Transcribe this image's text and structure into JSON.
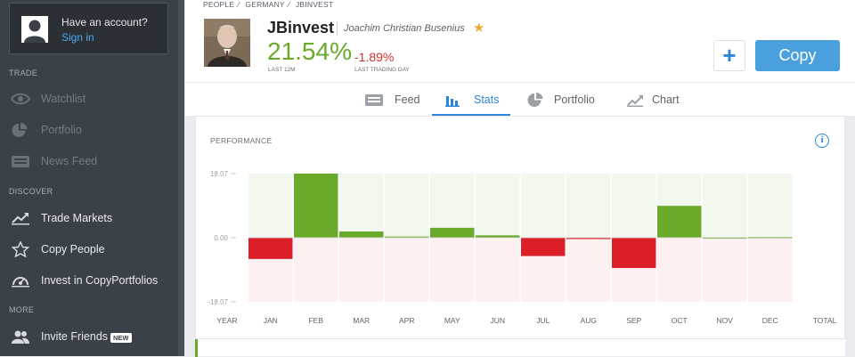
{
  "account": {
    "title": "Have an account?",
    "signin": "Sign in"
  },
  "sidebar": {
    "sections": [
      {
        "label": "TRADE",
        "items": [
          {
            "label": "Watchlist",
            "icon": "eye-icon",
            "enabled": false
          },
          {
            "label": "Portfolio",
            "icon": "pie-chart-icon",
            "enabled": false
          },
          {
            "label": "News Feed",
            "icon": "news-feed-icon",
            "enabled": false
          }
        ]
      },
      {
        "label": "DISCOVER",
        "items": [
          {
            "label": "Trade Markets",
            "icon": "trend-line-icon",
            "enabled": true
          },
          {
            "label": "Copy People",
            "icon": "star-icon",
            "enabled": true
          },
          {
            "label": "Invest in CopyPortfolios",
            "icon": "copyportfolio-icon",
            "enabled": true
          }
        ]
      },
      {
        "label": "MORE",
        "items": [
          {
            "label": "Invite Friends",
            "icon": "people-icon",
            "enabled": true,
            "badge": "NEW"
          }
        ]
      }
    ]
  },
  "breadcrumb": [
    "PEOPLE",
    "GERMANY",
    "JBINVEST"
  ],
  "profile": {
    "username": "JBinvest",
    "fullname": "Joachim Christian Busenius",
    "gain": "21.54%",
    "gain_label": "LAST 12M",
    "day_change": "-1.89%",
    "day_label": "LAST TRADING DAY"
  },
  "actions": {
    "plus": "+",
    "copy": "Copy"
  },
  "tabs": [
    {
      "label": "Feed",
      "icon": "feed-icon",
      "active": false
    },
    {
      "label": "Stats",
      "icon": "bar-chart-icon",
      "active": true
    },
    {
      "label": "Portfolio",
      "icon": "pie-chart-icon",
      "active": false
    },
    {
      "label": "Chart",
      "icon": "line-chart-icon",
      "active": false
    }
  ],
  "performance": {
    "title": "PERFORMANCE",
    "info": "i"
  },
  "colors": {
    "positive": "#6aaa2b",
    "negative": "#dd1f2a",
    "accent": "#2b85d8"
  },
  "chart_data": {
    "type": "bar",
    "ylim": [
      -18.07,
      18.07
    ],
    "yticks": [
      "18.07",
      "0.00",
      "-18.07"
    ],
    "year_label": "YEAR",
    "total_label": "TOTAL",
    "categories": [
      "JAN",
      "FEB",
      "MAR",
      "APR",
      "MAY",
      "JUN",
      "JUL",
      "AUG",
      "SEP",
      "OCT",
      "NOV",
      "DEC"
    ],
    "values": [
      -5.99,
      18.07,
      1.75,
      0.33,
      2.79,
      0.66,
      -5.17,
      -0.11,
      -8.54,
      8.99,
      0.11,
      0.2
    ]
  }
}
